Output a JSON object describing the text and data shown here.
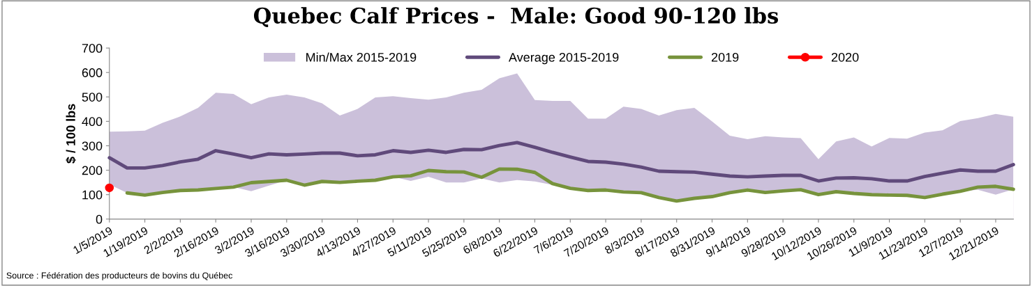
{
  "chart_data": {
    "type": "line",
    "title": "Quebec Calf Prices -  Male: Good 90-120 lbs",
    "ylabel": "$ / 100 lbs",
    "categories": [
      "1/5/2019",
      null,
      "1/19/2019",
      null,
      "2/2/2019",
      null,
      "2/16/2019",
      null,
      "3/2/2019",
      null,
      "3/16/2019",
      null,
      "3/30/2019",
      null,
      "4/13/2019",
      null,
      "4/27/2019",
      null,
      "5/11/2019",
      null,
      "5/25/2019",
      null,
      "6/8/2019",
      null,
      "6/22/2019",
      null,
      "7/6/2019",
      null,
      "7/20/2019",
      null,
      "8/3/2019",
      null,
      "8/17/2019",
      null,
      "8/31/2019",
      null,
      "9/14/2019",
      null,
      "9/28/2019",
      null,
      "10/12/2019",
      null,
      "10/26/2019",
      null,
      "11/9/2019",
      null,
      "11/23/2019",
      null,
      "12/7/2019",
      null,
      "12/21/2019",
      null
    ],
    "series": [
      {
        "name": "Min/Max 2015-2019",
        "type": "area",
        "color": "#cbc0da",
        "values": [
          358,
          359,
          362,
          394,
          420,
          455,
          517,
          512,
          470,
          498,
          509,
          498,
          474,
          424,
          451,
          498,
          503,
          495,
          489,
          498,
          517,
          529,
          576,
          596,
          487,
          484,
          484,
          411,
          411,
          460,
          451,
          424,
          446,
          455,
          400,
          341,
          327,
          339,
          334,
          331,
          245,
          318,
          334,
          297,
          332,
          329,
          354,
          363,
          401,
          413,
          430,
          419
        ]
      },
      {
        "type": "area",
        "color": "#ffffff",
        "values": [
          142,
          107,
          98,
          109,
          117,
          119,
          125,
          131,
          114,
          137,
          159,
          139,
          154,
          150,
          155,
          159,
          173,
          156,
          173,
          150,
          150,
          166,
          150,
          160,
          154,
          140,
          126,
          117,
          119,
          111,
          108,
          88,
          74,
          85,
          92,
          108,
          119,
          109,
          115,
          120,
          100,
          112,
          105,
          100,
          98,
          97,
          88,
          102,
          114,
          120,
          100,
          122
        ]
      },
      {
        "name": "Average 2015-2019",
        "color": "#604a7b",
        "values": [
          251,
          209,
          209,
          219,
          234,
          245,
          280,
          266,
          251,
          267,
          263,
          266,
          270,
          270,
          259,
          263,
          280,
          273,
          282,
          273,
          285,
          284,
          301,
          313,
          294,
          273,
          254,
          236,
          233,
          225,
          213,
          196,
          194,
          192,
          184,
          176,
          173,
          176,
          179,
          179,
          156,
          168,
          169,
          165,
          156,
          156,
          174,
          188,
          201,
          196,
          196,
          223
        ]
      },
      {
        "name": "2019",
        "color": "#77933c",
        "values": [
          null,
          107,
          98,
          109,
          117,
          119,
          125,
          131,
          149,
          154,
          159,
          139,
          154,
          150,
          155,
          159,
          173,
          177,
          199,
          194,
          193,
          171,
          205,
          204,
          191,
          145,
          126,
          117,
          119,
          111,
          108,
          88,
          74,
          85,
          92,
          108,
          119,
          109,
          115,
          120,
          100,
          112,
          105,
          100,
          98,
          97,
          88,
          102,
          114,
          131,
          134,
          122
        ]
      },
      {
        "name": "2020",
        "color": "#ff0000",
        "marker": "circle",
        "values": [
          128,
          null,
          null,
          null,
          null,
          null,
          null,
          null,
          null,
          null,
          null,
          null,
          null,
          null,
          null,
          null,
          null,
          null,
          null,
          null,
          null,
          null,
          null,
          null,
          null,
          null,
          null,
          null,
          null,
          null,
          null,
          null,
          null,
          null,
          null,
          null,
          null,
          null,
          null,
          null,
          null,
          null,
          null,
          null,
          null,
          null,
          null,
          null,
          null,
          null,
          null,
          null
        ]
      }
    ],
    "ylim": [
      0,
      700
    ],
    "yticks": [
      0,
      100,
      200,
      300,
      400,
      500,
      600,
      700
    ],
    "grid": false,
    "legend": "top",
    "annotations": [
      "Source : Fédération des producteurs de bovins du Québec"
    ]
  }
}
